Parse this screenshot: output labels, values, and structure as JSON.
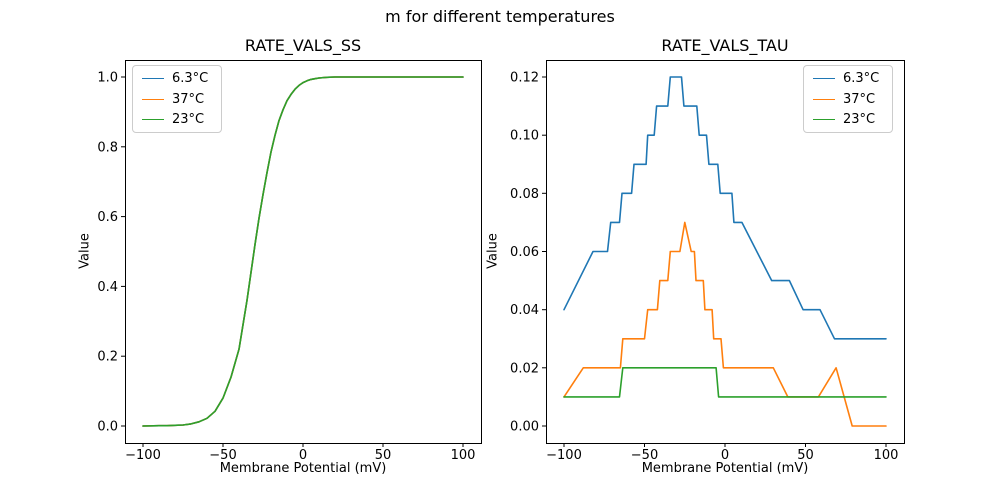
{
  "figure": {
    "suptitle": "m for different temperatures",
    "background": "#ffffff"
  },
  "colors": {
    "temp_6_3": "#1f77b4",
    "temp_37": "#ff7f0e",
    "temp_23": "#2ca02c",
    "axis": "#000000",
    "legend_border": "#cccccc"
  },
  "chart_data": [
    {
      "type": "line",
      "title": "RATE_VALS_SS",
      "xlabel": "Membrane Potential (mV)",
      "ylabel": "Value",
      "xlim": [
        -100,
        100
      ],
      "ylim": [
        0.0,
        1.0
      ],
      "grid": false,
      "legend_loc": "upper left",
      "xtick_values": [
        -100,
        -50,
        0,
        50,
        100
      ],
      "xtick_labels": [
        "−100",
        "−50",
        "0",
        "50",
        "100"
      ],
      "ytick_values": [
        0.0,
        0.2,
        0.4,
        0.6,
        0.8,
        1.0
      ],
      "ytick_labels": [
        "0.0",
        "0.2",
        "0.4",
        "0.6",
        "0.8",
        "1.0"
      ],
      "note": "all three temperature curves are identical and overlap; green (23°C) drawn last is visible",
      "shared_points": [
        [
          -100,
          0.0
        ],
        [
          -90,
          0.001
        ],
        [
          -85,
          0.001
        ],
        [
          -80,
          0.002
        ],
        [
          -75,
          0.003
        ],
        [
          -70,
          0.006
        ],
        [
          -65,
          0.012
        ],
        [
          -60,
          0.022
        ],
        [
          -55,
          0.042
        ],
        [
          -50,
          0.08
        ],
        [
          -45,
          0.14
        ],
        [
          -40,
          0.22
        ],
        [
          -37.5,
          0.29
        ],
        [
          -35,
          0.36
        ],
        [
          -32.5,
          0.44
        ],
        [
          -30,
          0.52
        ],
        [
          -27.5,
          0.595
        ],
        [
          -25,
          0.663
        ],
        [
          -22.5,
          0.726
        ],
        [
          -20,
          0.785
        ],
        [
          -17.5,
          0.833
        ],
        [
          -15,
          0.875
        ],
        [
          -12.5,
          0.906
        ],
        [
          -10,
          0.932
        ],
        [
          -7.5,
          0.95
        ],
        [
          -5,
          0.965
        ],
        [
          -2.5,
          0.976
        ],
        [
          0,
          0.984
        ],
        [
          2.5,
          0.989
        ],
        [
          5,
          0.993
        ],
        [
          7.5,
          0.995
        ],
        [
          10,
          0.997
        ],
        [
          15,
          0.999
        ],
        [
          20,
          1.0
        ],
        [
          30,
          1.0
        ],
        [
          100,
          1.0
        ]
      ],
      "series": [
        {
          "name": "6.3°C",
          "color": "#1f77b4"
        },
        {
          "name": "37°C",
          "color": "#ff7f0e"
        },
        {
          "name": "23°C",
          "color": "#2ca02c"
        }
      ]
    },
    {
      "type": "line",
      "title": "RATE_VALS_TAU",
      "xlabel": "Membrane Potential (mV)",
      "ylabel": "Value",
      "xlim": [
        -100,
        100
      ],
      "ylim": [
        0.0,
        0.12
      ],
      "grid": false,
      "legend_loc": "upper right",
      "xtick_values": [
        -100,
        -50,
        0,
        50,
        100
      ],
      "xtick_labels": [
        "−100",
        "−50",
        "0",
        "50",
        "100"
      ],
      "ytick_values": [
        0.0,
        0.02,
        0.04,
        0.06,
        0.08,
        0.1,
        0.12
      ],
      "ytick_labels": [
        "0.00",
        "0.02",
        "0.04",
        "0.06",
        "0.08",
        "0.10",
        "0.12"
      ],
      "series": [
        {
          "name": "6.3°C",
          "color": "#1f77b4",
          "points": [
            [
              -100,
              0.04
            ],
            [
              -82,
              0.06
            ],
            [
              -73,
              0.06
            ],
            [
              -71,
              0.07
            ],
            [
              -65.5,
              0.07
            ],
            [
              -64,
              0.08
            ],
            [
              -58,
              0.08
            ],
            [
              -56.5,
              0.09
            ],
            [
              -49,
              0.09
            ],
            [
              -48,
              0.1
            ],
            [
              -44,
              0.1
            ],
            [
              -42.5,
              0.11
            ],
            [
              -35.5,
              0.11
            ],
            [
              -34,
              0.12
            ],
            [
              -27,
              0.12
            ],
            [
              -25.5,
              0.11
            ],
            [
              -17.5,
              0.11
            ],
            [
              -16,
              0.1
            ],
            [
              -11.5,
              0.1
            ],
            [
              -10,
              0.09
            ],
            [
              -4.5,
              0.09
            ],
            [
              -3,
              0.08
            ],
            [
              4.3,
              0.08
            ],
            [
              5.5,
              0.07
            ],
            [
              10.5,
              0.07
            ],
            [
              29,
              0.05
            ],
            [
              40,
              0.05
            ],
            [
              48.5,
              0.04
            ],
            [
              59,
              0.04
            ],
            [
              68,
              0.03
            ],
            [
              100,
              0.03
            ]
          ]
        },
        {
          "name": "37°C",
          "color": "#ff7f0e",
          "points": [
            [
              -100,
              0.01
            ],
            [
              -88,
              0.02
            ],
            [
              -65,
              0.02
            ],
            [
              -63.5,
              0.03
            ],
            [
              -50,
              0.03
            ],
            [
              -48,
              0.04
            ],
            [
              -42,
              0.04
            ],
            [
              -40.5,
              0.05
            ],
            [
              -35.5,
              0.05
            ],
            [
              -34,
              0.06
            ],
            [
              -28,
              0.06
            ],
            [
              -25,
              0.07
            ],
            [
              -21,
              0.06
            ],
            [
              -19,
              0.06
            ],
            [
              -18,
              0.05
            ],
            [
              -13.5,
              0.05
            ],
            [
              -12.5,
              0.04
            ],
            [
              -8,
              0.04
            ],
            [
              -7,
              0.03
            ],
            [
              -2.5,
              0.03
            ],
            [
              -1,
              0.02
            ],
            [
              30,
              0.02
            ],
            [
              39,
              0.01
            ],
            [
              58,
              0.01
            ],
            [
              69,
              0.02
            ],
            [
              79,
              0.0
            ],
            [
              100,
              0.0
            ]
          ]
        },
        {
          "name": "23°C",
          "color": "#2ca02c",
          "points": [
            [
              -100,
              0.01
            ],
            [
              -65.5,
              0.01
            ],
            [
              -63.5,
              0.02
            ],
            [
              -5.5,
              0.02
            ],
            [
              -4,
              0.01
            ],
            [
              100,
              0.01
            ]
          ]
        }
      ]
    }
  ]
}
